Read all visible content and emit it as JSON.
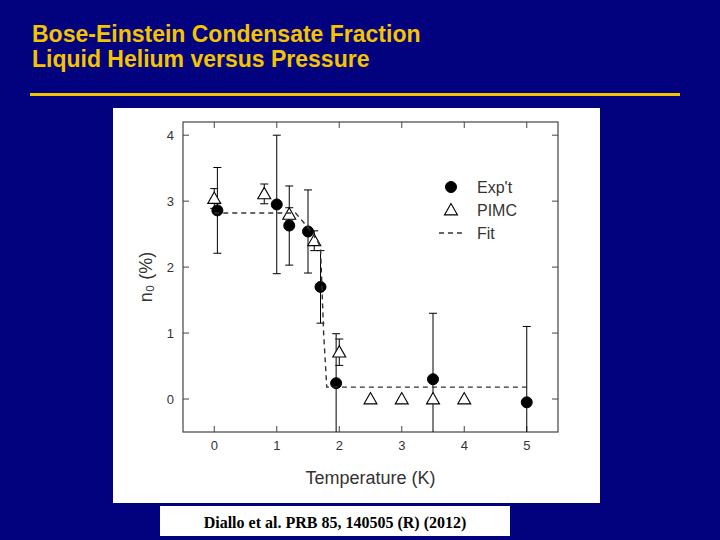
{
  "chart_data": {
    "type": "scatter",
    "title": "Bose-Einstein Condensate Fraction",
    "subtitle": "Liquid Helium versus Pressure",
    "x_label": "Temperature (K)",
    "y_label": "n₀ (%)",
    "annotations": [
      "Diallo et al. PRB 85, 140505 (R) (2012)"
    ],
    "xlim": [
      -0.5,
      5.5
    ],
    "ylim": [
      -0.5,
      4.2
    ],
    "xticks": [
      0,
      1,
      2,
      3,
      4,
      5
    ],
    "yticks": [
      0,
      1,
      2,
      3,
      4
    ],
    "legend": "upper right",
    "grid": false,
    "series": [
      {
        "name": "Exp't",
        "type": "scatter",
        "marker": "circle",
        "color": "#000000",
        "x": [
          0.05,
          1.0,
          1.2,
          1.5,
          1.7,
          1.95,
          3.5,
          5.0
        ],
        "values": [
          2.86,
          2.95,
          2.63,
          2.54,
          1.7,
          0.24,
          0.3,
          -0.05
        ],
        "errors": [
          0.65,
          1.05,
          0.6,
          0.63,
          0.55,
          0.75,
          1.0,
          1.15
        ]
      },
      {
        "name": "PIMC",
        "type": "scatter",
        "marker": "open-triangle",
        "color": "#000000",
        "x": [
          0,
          0.8,
          1.2,
          1.6,
          2.0,
          2.5,
          3.0,
          3.5,
          4.0
        ],
        "values": [
          3.04,
          3.11,
          2.8,
          2.4,
          0.71,
          0,
          0,
          0,
          0
        ],
        "errors": [
          0.15,
          0.15,
          0.1,
          0.15,
          0.2,
          0,
          0,
          0,
          0
        ]
      },
      {
        "name": "Fit",
        "type": "line",
        "line_style": "dashed",
        "color": "#333333",
        "x": [
          0,
          1.3,
          1.5,
          1.65,
          1.7,
          1.75,
          1.8,
          5.0
        ],
        "values": [
          2.82,
          2.82,
          2.6,
          2.4,
          2.3,
          1.0,
          0.18,
          0.18
        ]
      }
    ]
  }
}
